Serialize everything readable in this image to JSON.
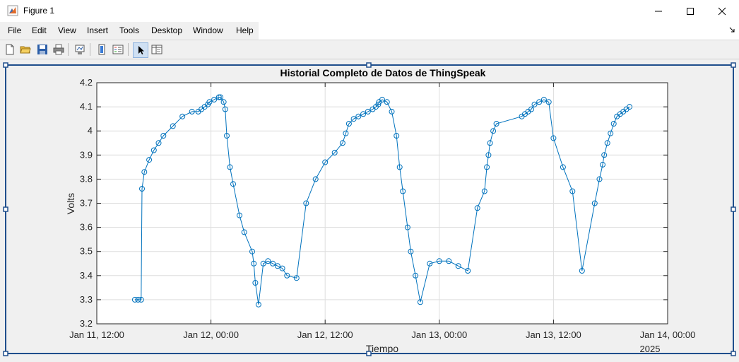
{
  "window": {
    "title": "Figure 1"
  },
  "menu": {
    "items": [
      "File",
      "Edit",
      "View",
      "Insert",
      "Tools",
      "Desktop",
      "Window",
      "Help"
    ]
  },
  "toolbar": {
    "icons": [
      "new-figure-icon",
      "open-file-icon",
      "save-icon",
      "print-icon",
      "link-plot-icon",
      "colorbar-icon",
      "legend-icon",
      "edit-plot-arrow-icon",
      "property-inspector-icon"
    ]
  },
  "colors": {
    "series": "#0072bd",
    "grid": "#dedede"
  },
  "chart_data": {
    "type": "line",
    "marker": "circle",
    "title": "Historial Completo de Datos de ThingSpeak",
    "xlabel": "Tiempo",
    "ylabel": "Volts",
    "x_secondary_label": "2025",
    "xticks": [
      "Jan 11, 12:00",
      "Jan 12, 00:00",
      "Jan 12, 12:00",
      "Jan 13, 00:00",
      "Jan 13, 12:00",
      "Jan 14, 00:00"
    ],
    "yticks": [
      "3.2",
      "3.3",
      "3.4",
      "3.5",
      "3.6",
      "3.7",
      "3.8",
      "3.9",
      "4",
      "4.1",
      "4.2"
    ],
    "xlim": [
      "2025-01-11 12:00",
      "2025-01-14 00:00"
    ],
    "ylim": [
      3.2,
      4.2
    ],
    "grid": true,
    "series": [
      {
        "x": [
          "2025-01-11 16:00",
          "2025-01-11 16:20",
          "2025-01-11 16:40",
          "2025-01-11 16:45",
          "2025-01-11 17:00",
          "2025-01-11 17:30",
          "2025-01-11 18:00",
          "2025-01-11 18:30",
          "2025-01-11 19:00",
          "2025-01-11 20:00",
          "2025-01-11 21:00",
          "2025-01-11 22:00",
          "2025-01-11 22:40",
          "2025-01-11 23:00",
          "2025-01-11 23:20",
          "2025-01-11 23:40",
          "2025-01-11 23:50",
          "2025-01-12 00:20",
          "2025-01-12 00:50",
          "2025-01-12 01:00",
          "2025-01-12 01:20",
          "2025-01-12 01:30",
          "2025-01-12 01:40",
          "2025-01-12 02:00",
          "2025-01-12 02:20",
          "2025-01-12 03:00",
          "2025-01-12 03:30",
          "2025-01-12 04:20",
          "2025-01-12 04:30",
          "2025-01-12 04:40",
          "2025-01-12 05:00",
          "2025-01-12 05:30",
          "2025-01-12 06:00",
          "2025-01-12 06:30",
          "2025-01-12 07:00",
          "2025-01-12 07:30",
          "2025-01-12 08:00",
          "2025-01-12 09:00",
          "2025-01-12 10:00",
          "2025-01-12 11:00",
          "2025-01-12 12:00",
          "2025-01-12 13:00",
          "2025-01-12 13:50",
          "2025-01-12 14:10",
          "2025-01-12 14:30",
          "2025-01-12 15:00",
          "2025-01-12 15:30",
          "2025-01-12 16:00",
          "2025-01-12 16:30",
          "2025-01-12 17:00",
          "2025-01-12 17:20",
          "2025-01-12 17:35",
          "2025-01-12 17:40",
          "2025-01-12 18:00",
          "2025-01-12 18:30",
          "2025-01-12 19:00",
          "2025-01-12 19:30",
          "2025-01-12 19:50",
          "2025-01-12 20:10",
          "2025-01-12 20:40",
          "2025-01-12 21:00",
          "2025-01-12 21:30",
          "2025-01-12 22:00",
          "2025-01-12 23:00",
          "2025-01-13 00:00",
          "2025-01-13 01:00",
          "2025-01-13 02:00",
          "2025-01-13 03:00",
          "2025-01-13 04:00",
          "2025-01-13 04:45",
          "2025-01-13 05:00",
          "2025-01-13 05:10",
          "2025-01-13 05:20",
          "2025-01-13 05:40",
          "2025-01-13 06:00",
          "2025-01-13 08:40",
          "2025-01-13 09:00",
          "2025-01-13 09:20",
          "2025-01-13 09:40",
          "2025-01-13 10:00",
          "2025-01-13 10:30",
          "2025-01-13 11:00",
          "2025-01-13 11:30",
          "2025-01-13 12:00",
          "2025-01-13 13:00",
          "2025-01-13 14:00",
          "2025-01-13 15:00",
          "2025-01-13 16:20",
          "2025-01-13 16:50",
          "2025-01-13 17:10",
          "2025-01-13 17:20",
          "2025-01-13 17:40",
          "2025-01-13 18:00",
          "2025-01-13 18:20",
          "2025-01-13 18:40",
          "2025-01-13 19:00",
          "2025-01-13 19:20",
          "2025-01-13 19:40",
          "2025-01-13 20:00"
        ],
        "values": [
          3.3,
          3.3,
          3.3,
          3.76,
          3.83,
          3.88,
          3.92,
          3.95,
          3.98,
          4.02,
          4.06,
          4.08,
          4.08,
          4.09,
          4.1,
          4.11,
          4.12,
          4.13,
          4.14,
          4.14,
          4.12,
          4.09,
          3.98,
          3.85,
          3.78,
          3.65,
          3.58,
          3.5,
          3.45,
          3.37,
          3.28,
          3.45,
          3.46,
          3.45,
          3.44,
          3.43,
          3.4,
          3.39,
          3.7,
          3.8,
          3.87,
          3.91,
          3.95,
          3.99,
          4.03,
          4.05,
          4.06,
          4.07,
          4.08,
          4.09,
          4.1,
          4.11,
          4.12,
          4.13,
          4.12,
          4.08,
          3.98,
          3.85,
          3.75,
          3.6,
          3.5,
          3.4,
          3.29,
          3.45,
          3.46,
          3.46,
          3.44,
          3.42,
          3.68,
          3.75,
          3.85,
          3.9,
          3.95,
          4.0,
          4.03,
          4.06,
          4.07,
          4.08,
          4.09,
          4.11,
          4.12,
          4.13,
          4.12,
          3.97,
          3.85,
          3.75,
          3.42,
          3.7,
          3.8,
          3.86,
          3.9,
          3.95,
          3.99,
          4.03,
          4.06,
          4.07,
          4.08,
          4.09,
          4.1
        ]
      }
    ]
  }
}
